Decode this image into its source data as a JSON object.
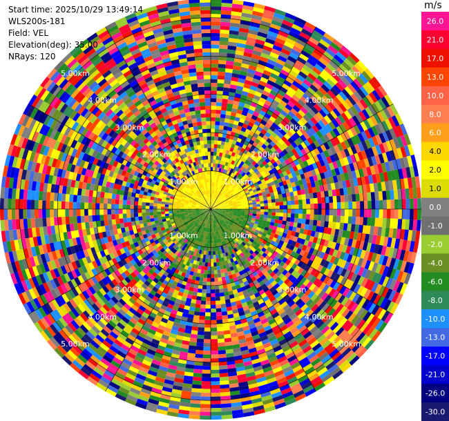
{
  "info": {
    "start_time": "Start time: 2025/10/29 13:49:14",
    "site": "WLS200s-181",
    "field": "Field: VEL",
    "elevation": "Elevation(deg): 35.00",
    "nrays": "NRays: 120"
  },
  "colorbar": {
    "unit": "m/s",
    "levels": [
      {
        "label": "26.0",
        "color": "#ff1493"
      },
      {
        "label": "21.0",
        "color": "#ff0033"
      },
      {
        "label": "17.0",
        "color": "#ee1100"
      },
      {
        "label": "13.0",
        "color": "#ff4500"
      },
      {
        "label": "10.0",
        "color": "#ff6347"
      },
      {
        "label": "8.0",
        "color": "#ff7f50"
      },
      {
        "label": "6.0",
        "color": "#ff9f1a"
      },
      {
        "label": "4.0",
        "color": "#ffd700"
      },
      {
        "label": "2.0",
        "color": "#ffff00"
      },
      {
        "label": "1.0",
        "color": "#dcdc00"
      },
      {
        "label": "0.0",
        "color": "#808080"
      },
      {
        "label": "-1.0",
        "color": "#707070"
      },
      {
        "label": "-2.0",
        "color": "#9acd32"
      },
      {
        "label": "-4.0",
        "color": "#6b8e23"
      },
      {
        "label": "-6.0",
        "color": "#228b22"
      },
      {
        "label": "-8.0",
        "color": "#2e8b57"
      },
      {
        "label": "-10.0",
        "color": "#1e90ff"
      },
      {
        "label": "-13.0",
        "color": "#4169e1"
      },
      {
        "label": "-17.0",
        "color": "#0000ff"
      },
      {
        "label": "-21.0",
        "color": "#0000cd"
      },
      {
        "label": "-26.0",
        "color": "#000080"
      },
      {
        "label": "-30.0",
        "color": "#191970"
      }
    ]
  },
  "chart_data": {
    "type": "heatmap",
    "title": "",
    "field": "VEL",
    "unit": "m/s",
    "elevation_deg": 35.0,
    "nrays": 120,
    "range_ring_labels": [
      "1.00km",
      "2.00km",
      "3.00km",
      "4.00km",
      "5.00km"
    ],
    "range_rings_km": [
      1,
      2,
      3,
      4,
      5
    ],
    "max_range_km": 5.5,
    "center_region": {
      "north_half_range_km": [
        0,
        1.0
      ],
      "north_half_typical_velocity": 4.0,
      "south_half_range_km": [
        0,
        1.0
      ],
      "south_half_typical_velocity": -4.0
    },
    "outer_region_description": "noise"
  }
}
